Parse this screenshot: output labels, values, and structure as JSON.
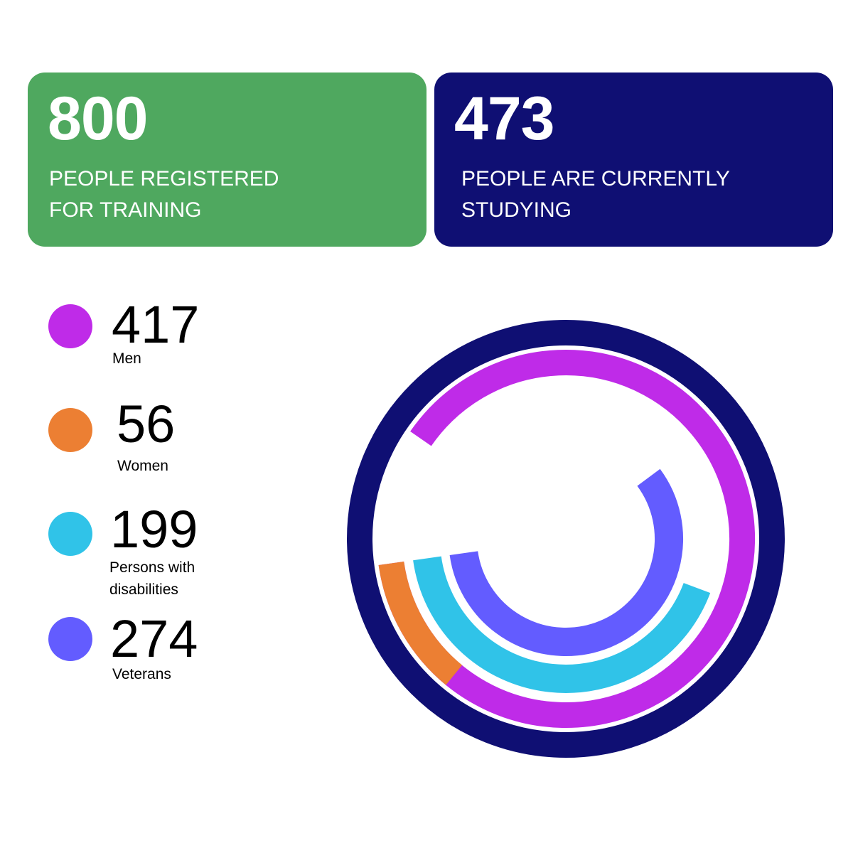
{
  "cards": [
    {
      "value": "800",
      "label_line1": "PEOPLE REGISTERED",
      "label_line2": "FOR TRAINING",
      "color": "#4fa85f"
    },
    {
      "value": "473",
      "label_line1": "PEOPLE ARE CURRENTLY",
      "label_line2": "STUDYING",
      "color": "#0f0f73"
    }
  ],
  "chart_data": {
    "type": "radial-bar",
    "total": 473,
    "categories": [
      "Men",
      "Women",
      "Persons with disabilities",
      "Veterans"
    ],
    "values": [
      417,
      56,
      199,
      274
    ],
    "colors": {
      "Men": "#bf2be8",
      "Women": "#ec7f33",
      "Persons with disabilities": "#30c3e8",
      "Veterans": "#635cff",
      "outer_ring": "#0f0f73"
    },
    "legend": [
      {
        "value": "417",
        "label_line1": "Men",
        "label_line2": ""
      },
      {
        "value": "56",
        "label_line1": "Women",
        "label_line2": ""
      },
      {
        "value": "199",
        "label_line1": "Persons with",
        "label_line2": "disabilities"
      },
      {
        "value": "274",
        "label_line1": "Veterans",
        "label_line2": ""
      }
    ]
  }
}
